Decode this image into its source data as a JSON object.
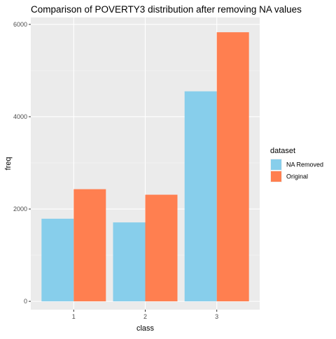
{
  "chart_data": {
    "type": "bar",
    "title": "Comparison of POVERTY3 distribution after removing NA values",
    "xlabel": "class",
    "ylabel": "freq",
    "categories": [
      "1",
      "2",
      "3"
    ],
    "yticks": [
      "0",
      "2000",
      "4000",
      "6000"
    ],
    "ylim": [
      -180,
      6150
    ],
    "grid": true,
    "position": "dodge",
    "legend": {
      "title": "dataset",
      "placement": "right"
    },
    "series": [
      {
        "name": "NA Removed",
        "color": "#87ceeb",
        "values": [
          1790,
          1710,
          4550
        ]
      },
      {
        "name": "Original",
        "color": "#ff7f50",
        "values": [
          2430,
          2310,
          5830
        ]
      }
    ]
  }
}
